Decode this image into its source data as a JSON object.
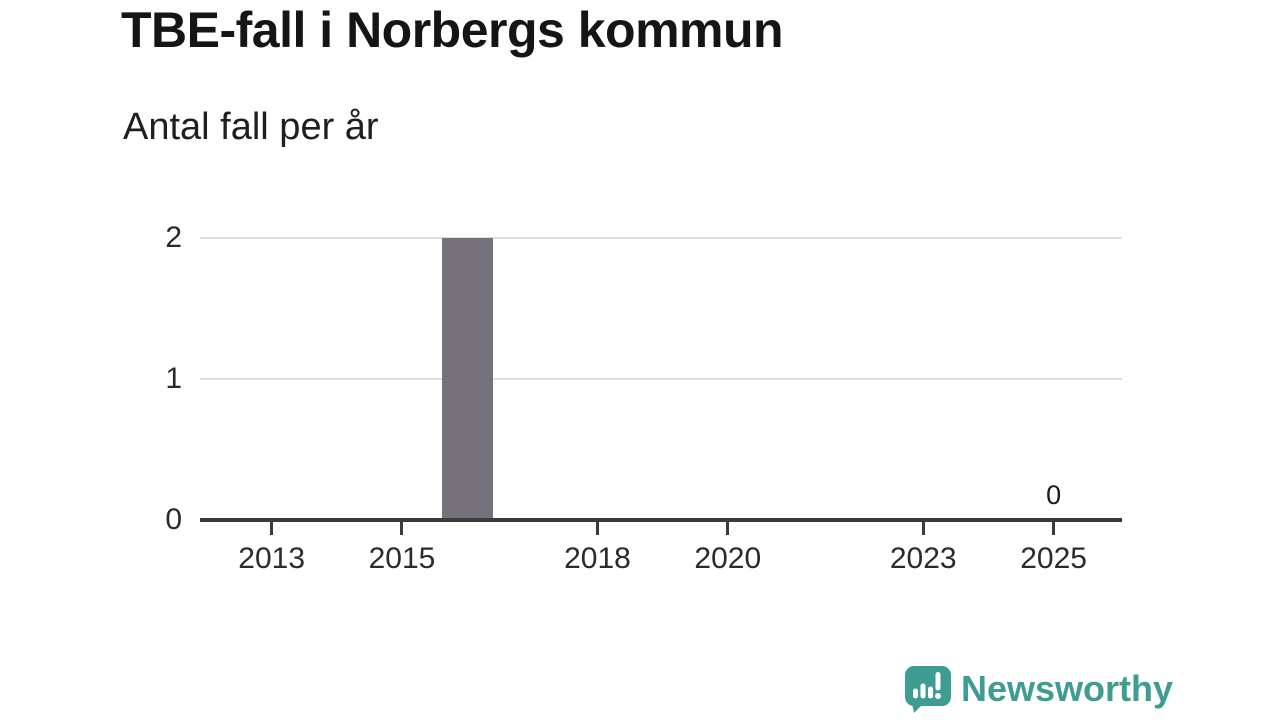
{
  "header": {
    "title": "TBE-fall i Norbergs kommun",
    "subtitle": "Antal fall per år"
  },
  "chart_data": {
    "type": "bar",
    "title": "TBE-fall i Norbergs kommun",
    "ylabel": "Antal fall per år",
    "x_tick_years": [
      2013,
      2015,
      2018,
      2020,
      2023,
      2025
    ],
    "x_tick_labels": [
      "2013",
      "2015",
      "2018",
      "2020",
      "2023",
      "2025"
    ],
    "y_ticks": [
      0,
      1,
      2
    ],
    "ylim": [
      0,
      2
    ],
    "xlim": [
      2011.9,
      2026.05
    ],
    "bars": [
      {
        "year": 2016,
        "value": 2
      }
    ],
    "value_labels": [
      {
        "year": 2025,
        "value": 0,
        "text": "0"
      }
    ],
    "bar_width_years": 0.78,
    "grid": "horizontal",
    "legend": "none",
    "bar_color": "#75727B",
    "axis_color": "#3B3B3B",
    "grid_color": "#DEDEDE",
    "tick_label_color": "#2B2B2B"
  },
  "footer": {
    "brand_name": "Newsworthy",
    "brand_color": "#3E9C92"
  }
}
